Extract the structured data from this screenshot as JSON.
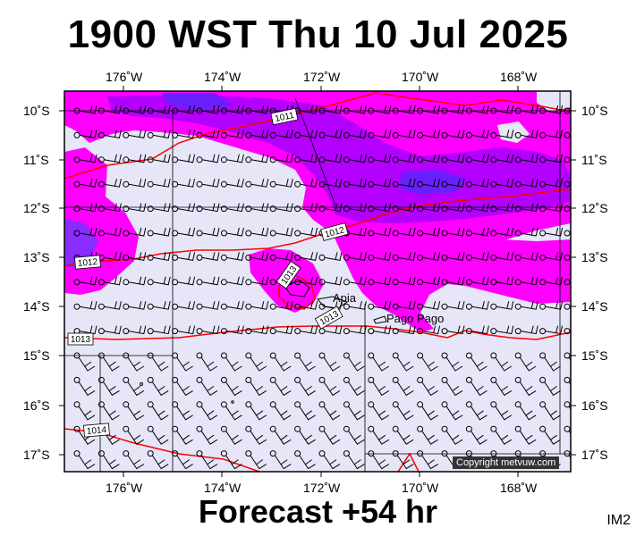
{
  "header": {
    "title": "1900 WST Thu 10 Jul 2025"
  },
  "footer": {
    "forecast": "Forecast +54 hr",
    "product": "IM2",
    "copyright": "Copyright metvuw.com"
  },
  "axes": {
    "lon_labels": [
      "176˚W",
      "174˚W",
      "172˚W",
      "170˚W",
      "168˚W"
    ],
    "lat_labels": [
      "10˚S",
      "11˚S",
      "12˚S",
      "13˚S",
      "14˚S",
      "15˚S",
      "16˚S",
      "17˚S"
    ]
  },
  "places": {
    "apia": "Apia",
    "pago": "Pago Pago"
  },
  "isobars": {
    "l1": "1011",
    "l2": "1012",
    "l3": "1012",
    "l4": "1013",
    "l5": "1013",
    "l6": "1013",
    "l7": "1014"
  },
  "colors": {
    "background": "#e6e6f8",
    "rain_light": "#ff00ff",
    "rain_mid": "#b400ff",
    "rain_heavy": "#6a1fff",
    "isobar": "#ff0000"
  }
}
